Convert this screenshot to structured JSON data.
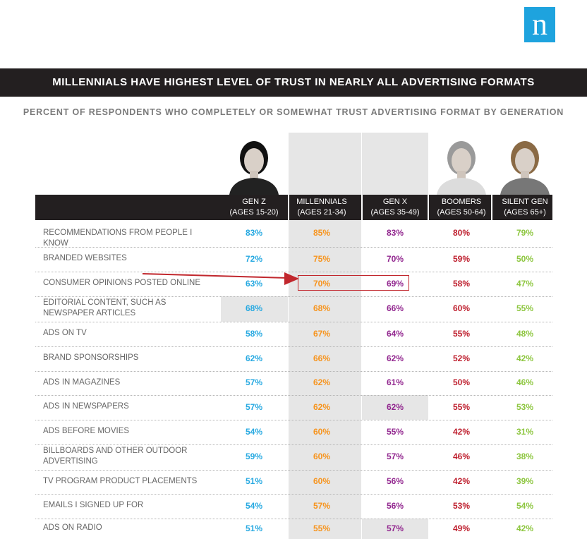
{
  "logo": {
    "letter": "n"
  },
  "title": "MILLENNIALS HAVE HIGHEST LEVEL OF TRUST IN NEARLY ALL ADVERTISING FORMATS",
  "subtitle": "PERCENT OF RESPONDENTS WHO COMPLETELY OR SOMEWHAT TRUST ADVERTISING FORMAT BY GENERATION",
  "colors": {
    "gen_z": "#27a9e1",
    "millennials": "#f7941d",
    "gen_x": "#92278f",
    "boomers": "#be1e2d",
    "silent_gen": "#8dc63f",
    "header_bg": "#231f20",
    "highlight": "#c1272d"
  },
  "columns": [
    {
      "name": "GEN Z",
      "ages": "(AGES 15-20)"
    },
    {
      "name": "MILLENNIALS",
      "ages": "(AGES 21-34)"
    },
    {
      "name": "GEN X",
      "ages": "(AGES 35-49)"
    },
    {
      "name": "BOOMERS",
      "ages": "(AGES 50-64)"
    },
    {
      "name": "SILENT GEN",
      "ages": "(AGES 65+)"
    }
  ],
  "chart_data": {
    "type": "table",
    "title": "MILLENNIALS HAVE HIGHEST LEVEL OF TRUST IN NEARLY ALL ADVERTISING FORMATS",
    "subtitle": "PERCENT OF RESPONDENTS WHO COMPLETELY OR SOMEWHAT TRUST ADVERTISING FORMAT BY GENERATION",
    "columns": [
      "GEN Z",
      "MILLENNIALS",
      "GEN X",
      "BOOMERS",
      "SILENT GEN"
    ],
    "rows": [
      {
        "label": "RECOMMENDATIONS FROM PEOPLE I KNOW",
        "values": [
          "83%",
          "85%",
          "83%",
          "80%",
          "79%"
        ]
      },
      {
        "label": "BRANDED WEBSITES",
        "values": [
          "72%",
          "75%",
          "70%",
          "59%",
          "50%"
        ]
      },
      {
        "label": "CONSUMER OPINIONS POSTED ONLINE",
        "values": [
          "63%",
          "70%",
          "69%",
          "58%",
          "47%"
        ]
      },
      {
        "label": "EDITORIAL CONTENT, SUCH AS NEWSPAPER ARTICLES",
        "values": [
          "68%",
          "68%",
          "66%",
          "60%",
          "55%"
        ]
      },
      {
        "label": "ADS ON TV",
        "values": [
          "58%",
          "67%",
          "64%",
          "55%",
          "48%"
        ]
      },
      {
        "label": "BRAND SPONSORSHIPS",
        "values": [
          "62%",
          "66%",
          "62%",
          "52%",
          "42%"
        ]
      },
      {
        "label": "ADS IN MAGAZINES",
        "values": [
          "57%",
          "62%",
          "61%",
          "50%",
          "46%"
        ]
      },
      {
        "label": "ADS IN NEWSPAPERS",
        "values": [
          "57%",
          "62%",
          "62%",
          "55%",
          "53%"
        ]
      },
      {
        "label": "ADS BEFORE MOVIES",
        "values": [
          "54%",
          "60%",
          "55%",
          "42%",
          "31%"
        ]
      },
      {
        "label": "BILLBOARDS AND OTHER OUTDOOR ADVERTISING",
        "values": [
          "59%",
          "60%",
          "57%",
          "46%",
          "38%"
        ]
      },
      {
        "label": "TV PROGRAM PRODUCT PLACEMENTS",
        "values": [
          "51%",
          "60%",
          "56%",
          "42%",
          "39%"
        ]
      },
      {
        "label": "EMAILS I SIGNED UP FOR",
        "values": [
          "54%",
          "57%",
          "56%",
          "53%",
          "54%"
        ]
      },
      {
        "label": "ADS ON RADIO",
        "values": [
          "51%",
          "55%",
          "57%",
          "49%",
          "42%"
        ]
      }
    ]
  }
}
